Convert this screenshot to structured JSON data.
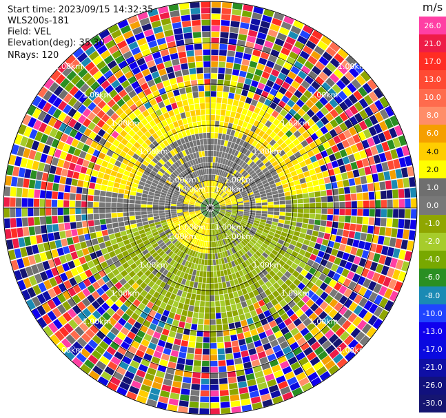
{
  "header": {
    "start_time": "Start time: 2023/09/15 14:32:35",
    "instrument": "WLS200s-181",
    "field": "Field: VEL",
    "elevation": "Elevation(deg): 35.30",
    "nrays": "NRays: 120"
  },
  "colorbar": {
    "unit": "m/s",
    "labels": [
      "26.0",
      "21.0",
      "17.0",
      "13.0",
      "10.0",
      "8.0",
      "6.0",
      "4.0",
      "2.0",
      "1.0",
      "0.0",
      "-1.0",
      "-2.0",
      "-4.0",
      "-6.0",
      "-8.0",
      "-10.0",
      "-13.0",
      "-17.0",
      "-21.0",
      "-26.0",
      "-30.0"
    ],
    "colors": [
      "#ff3fa4",
      "#ee1c47",
      "#ff2d23",
      "#ff4a33",
      "#ff6b4d",
      "#ff8d68",
      "#f59f00",
      "#ffcd00",
      "#ffff00",
      "#6f6f6f",
      "#787878",
      "#8fa600",
      "#a6cc2b",
      "#78a800",
      "#2a8f22",
      "#1a8ab4",
      "#2044ff",
      "#1000ee",
      "#0a0adf",
      "#0f0fa5",
      "#11117d",
      "#151571"
    ]
  },
  "ring_labels": [
    "1.00km",
    "1.00km",
    "1.00km",
    "1.00km",
    "1.00km",
    "1.00km",
    "1.00km",
    "1.00km",
    "1.00km",
    "1.00km",
    "1.00km",
    "1.00km",
    "1.00km",
    "1.00km",
    "1.00km",
    "1.00km",
    "1.00km",
    "1.00km",
    "1.00km",
    "1.00km",
    "1.00km",
    "1.00km",
    "1.00km",
    "1.00km"
  ],
  "scan": {
    "nrays": 120,
    "gates": 34
  }
}
